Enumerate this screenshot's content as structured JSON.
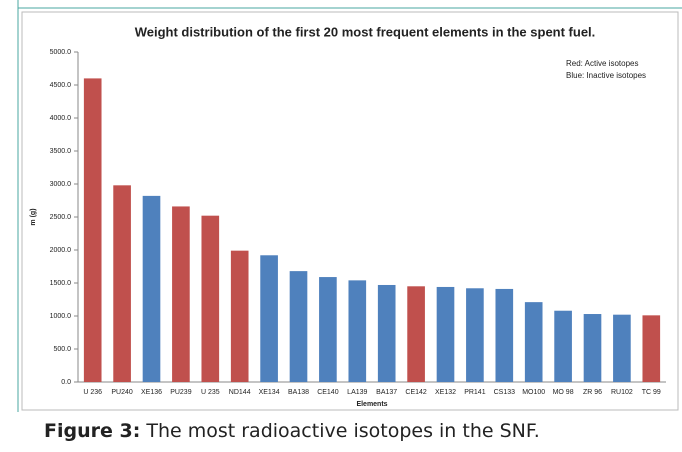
{
  "chart_data": {
    "type": "bar",
    "title": "Weight distribution of the first 20 most frequent elements in the spent fuel.",
    "x_label": "Elements",
    "y_label": "m (g)",
    "annotations": [
      "Red: Active isotopes",
      "Blue: Inactive isotopes"
    ],
    "categories": [
      "U 236",
      "PU240",
      "XE136",
      "PU239",
      "U 235",
      "ND144",
      "XE134",
      "BA138",
      "CE140",
      "LA139",
      "BA137",
      "CE142",
      "XE132",
      "PR141",
      "CS133",
      "MO100",
      "MO 98",
      "ZR 96",
      "RU102",
      "TC 99"
    ],
    "values": [
      4600,
      2980,
      2820,
      2660,
      2520,
      1990,
      1920,
      1680,
      1590,
      1540,
      1470,
      1450,
      1440,
      1420,
      1410,
      1210,
      1080,
      1030,
      1020,
      1010
    ],
    "colors": [
      "#c0504d",
      "#c0504d",
      "#4f81bd",
      "#c0504d",
      "#c0504d",
      "#c0504d",
      "#4f81bd",
      "#4f81bd",
      "#4f81bd",
      "#4f81bd",
      "#4f81bd",
      "#c0504d",
      "#4f81bd",
      "#4f81bd",
      "#4f81bd",
      "#4f81bd",
      "#4f81bd",
      "#4f81bd",
      "#4f81bd",
      "#c0504d"
    ],
    "ylim": [
      0,
      5000
    ],
    "yticks": [
      {
        "value": 0,
        "label": "0.0"
      },
      {
        "value": 500,
        "label": "500.0"
      },
      {
        "value": 1000,
        "label": "1000.0"
      },
      {
        "value": 1500,
        "label": "1500.0"
      },
      {
        "value": 2000,
        "label": "2000.0"
      },
      {
        "value": 2500,
        "label": "2500.0"
      },
      {
        "value": 3000,
        "label": "3000.0"
      },
      {
        "value": 3500,
        "label": "3500.0"
      },
      {
        "value": 4000,
        "label": "4000.0"
      },
      {
        "value": 4500,
        "label": "4500.0"
      },
      {
        "value": 5000,
        "label": "5000.0"
      }
    ],
    "grid": false
  },
  "caption": {
    "label": "Figure 3:",
    "text": " The most radioactive isotopes in the SNF."
  }
}
